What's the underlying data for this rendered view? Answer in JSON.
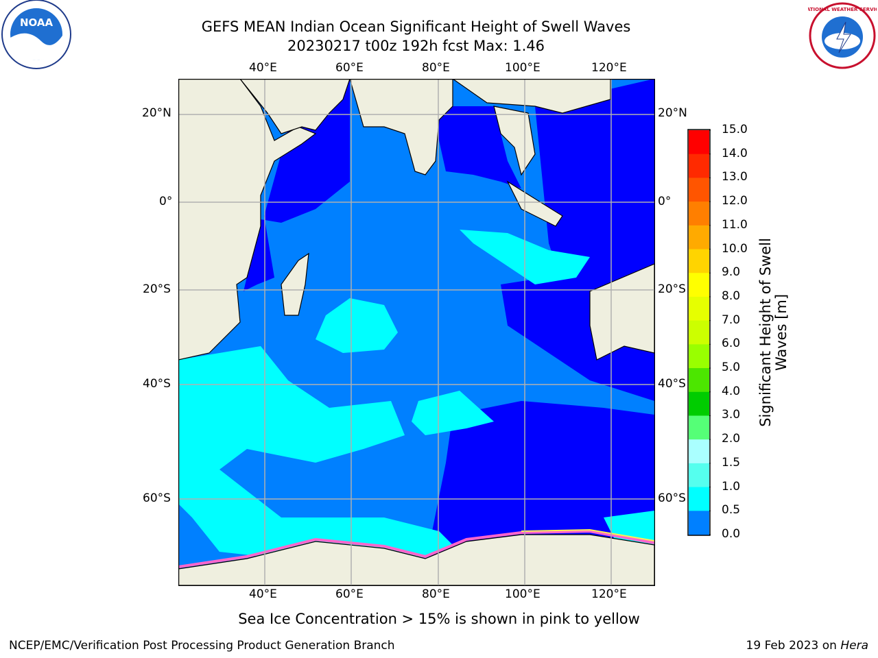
{
  "title_line1": "GEFS MEAN Indian Ocean Significant Height of Swell Waves",
  "title_line2": "20230217 t00z 192h fcst   Max: 1.46",
  "lon_ticks": [
    "40°E",
    "60°E",
    "80°E",
    "100°E",
    "120°E"
  ],
  "lat_ticks_left": [
    "20°N",
    "0°",
    "20°S",
    "40°S",
    "60°S"
  ],
  "lat_ticks_right": [
    "20°N",
    "0°",
    "20°S",
    "40°S",
    "60°S"
  ],
  "colorbar": {
    "title_line1": "Significant Height of Swell",
    "title_line2": "Waves [m]",
    "labels": [
      "15.0",
      "14.0",
      "13.0",
      "12.0",
      "11.0",
      "10.0",
      "9.0",
      "8.0",
      "7.0",
      "6.0",
      "5.0",
      "4.0",
      "3.0",
      "2.0",
      "1.5",
      "1.0",
      "0.5",
      "0.0"
    ],
    "colors": [
      "#ff0000",
      "#ff2a00",
      "#ff5500",
      "#ff7f00",
      "#ffaa00",
      "#ffd400",
      "#ffff00",
      "#e6ff00",
      "#ccff00",
      "#99ff00",
      "#4ce600",
      "#00cc00",
      "#55ff77",
      "#aaffff",
      "#55ffee",
      "#00ffff",
      "#0080ff",
      "#0000ff"
    ]
  },
  "colors": {
    "land": "#efefdf",
    "level_0": "#0000ff",
    "level_05": "#0080ff",
    "level_10": "#00ffff"
  },
  "sea_ice_note": "Sea Ice Concentration > 15% is shown in pink to yellow",
  "footer_left": "NCEP/EMC/Verification Post Processing Product Generation Branch",
  "footer_right_date": "19 Feb 2023 on",
  "footer_right_host": "Hera",
  "logos": {
    "left_text": "NOAA",
    "right_text": "NATIONAL WEATHER SERVICE"
  }
}
